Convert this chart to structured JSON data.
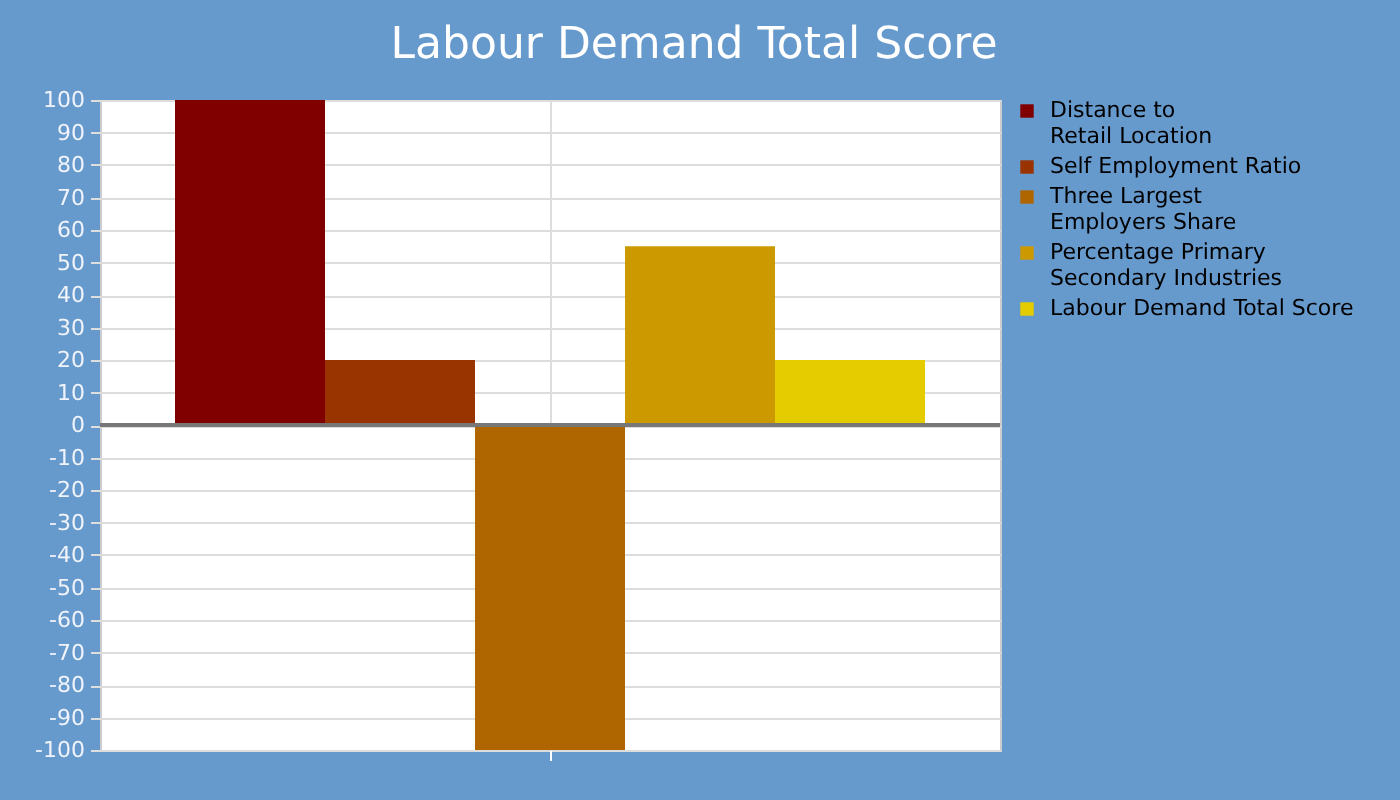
{
  "chart_data": {
    "type": "bar",
    "title": "Labour Demand Total Score",
    "categories": [
      null
    ],
    "series": [
      {
        "name": "Distance to\nRetail Location",
        "color": "#800000",
        "values": [
          100
        ]
      },
      {
        "name": "Self Employment Ratio",
        "color": "#993300",
        "values": [
          20
        ]
      },
      {
        "name": "Three Largest\nEmployers Share",
        "color": "#b06600",
        "values": [
          -100
        ]
      },
      {
        "name": "Percentage Primary\nSecondary Industries",
        "color": "#cc9900",
        "values": [
          55
        ]
      },
      {
        "name": "Labour Demand Total Score",
        "color": "#e5cc00",
        "values": [
          20
        ]
      }
    ],
    "ylim": [
      -100,
      100
    ],
    "yticks": [
      -100,
      -90,
      -80,
      -70,
      -60,
      -50,
      -40,
      -30,
      -20,
      -10,
      0,
      10,
      20,
      30,
      40,
      50,
      60,
      70,
      80,
      90,
      100
    ],
    "grid": true,
    "legend": "right",
    "ref_lines": [
      {
        "axis": "y",
        "value": 0,
        "color": "#777777"
      }
    ]
  }
}
